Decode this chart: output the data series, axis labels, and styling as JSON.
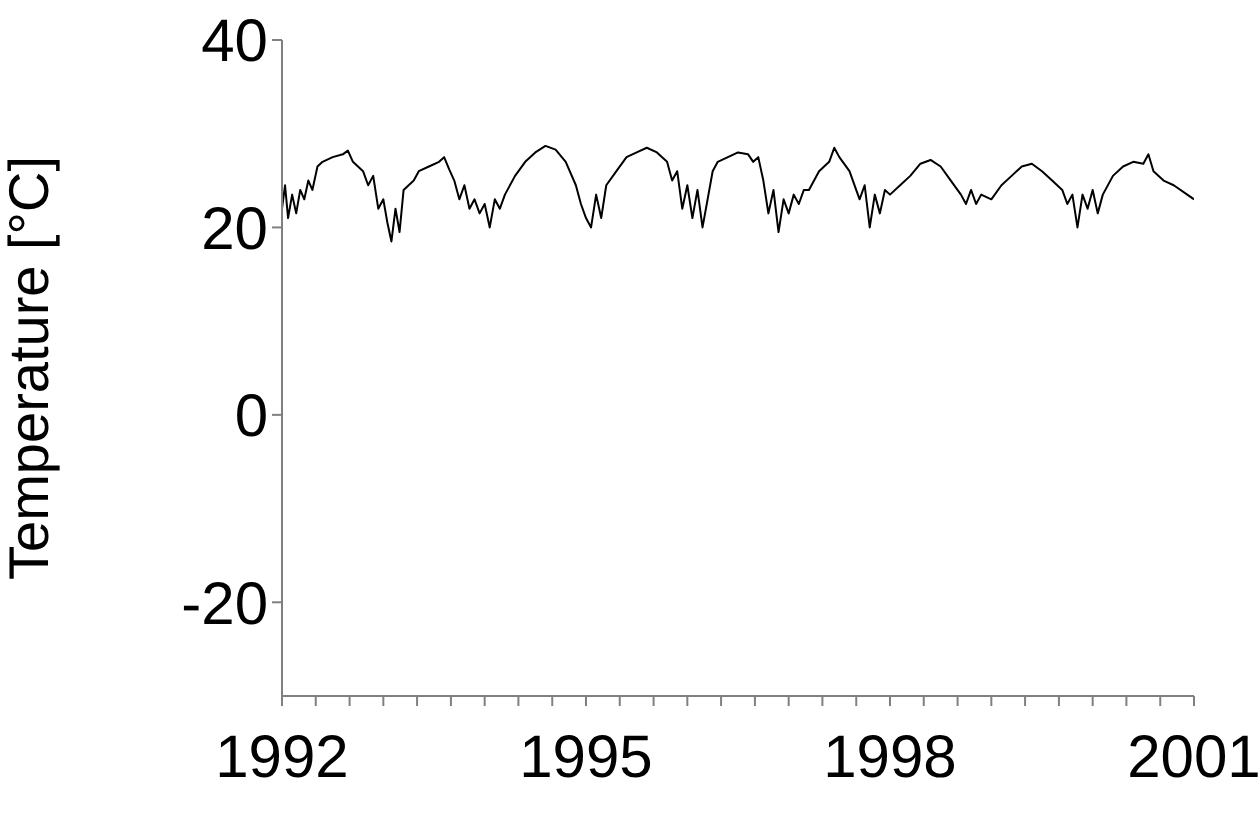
{
  "chart_data": {
    "type": "line",
    "ylabel": "Temperature [°C]",
    "xlim": [
      1992,
      2001
    ],
    "xticks": [
      1992,
      {
        "value": 1992.333,
        "label": null
      },
      {
        "value": 1992.667,
        "label": null
      },
      {
        "value": 1993,
        "label": null
      },
      {
        "value": 1993.333,
        "label": null
      },
      {
        "value": 1993.667,
        "label": null
      },
      {
        "value": 1994,
        "label": null
      },
      {
        "value": 1994.333,
        "label": null
      },
      {
        "value": 1994.667,
        "label": null
      },
      1995,
      {
        "value": 1995.333,
        "label": null
      },
      {
        "value": 1995.667,
        "label": null
      },
      {
        "value": 1996,
        "label": null
      },
      {
        "value": 1996.333,
        "label": null
      },
      {
        "value": 1996.667,
        "label": null
      },
      {
        "value": 1997,
        "label": null
      },
      {
        "value": 1997.333,
        "label": null
      },
      {
        "value": 1997.667,
        "label": null
      },
      1998,
      {
        "value": 1998.333,
        "label": null
      },
      {
        "value": 1998.667,
        "label": null
      },
      {
        "value": 1999,
        "label": null
      },
      {
        "value": 1999.333,
        "label": null
      },
      {
        "value": 1999.667,
        "label": null
      },
      {
        "value": 2000,
        "label": null
      },
      {
        "value": 2000.333,
        "label": null
      },
      {
        "value": 2000.667,
        "label": null
      },
      2001
    ],
    "ylim": [
      -30,
      40
    ],
    "yticks": [
      -20,
      0,
      20,
      40
    ],
    "grid": false,
    "legend": false,
    "marker": "none",
    "line_style": "solid",
    "x": [
      1992.0,
      1992.03,
      1992.06,
      1992.1,
      1992.14,
      1992.18,
      1992.22,
      1992.26,
      1992.3,
      1992.35,
      1992.4,
      1992.5,
      1992.6,
      1992.65,
      1992.7,
      1992.75,
      1992.8,
      1992.85,
      1992.9,
      1992.95,
      1993.0,
      1993.04,
      1993.08,
      1993.12,
      1993.16,
      1993.2,
      1993.25,
      1993.3,
      1993.35,
      1993.45,
      1993.55,
      1993.6,
      1993.65,
      1993.7,
      1993.75,
      1993.8,
      1993.85,
      1993.9,
      1993.95,
      1994.0,
      1994.05,
      1994.1,
      1994.15,
      1994.2,
      1994.3,
      1994.4,
      1994.5,
      1994.6,
      1994.7,
      1994.8,
      1994.9,
      1994.95,
      1995.0,
      1995.05,
      1995.1,
      1995.15,
      1995.2,
      1995.3,
      1995.4,
      1995.5,
      1995.6,
      1995.7,
      1995.8,
      1995.85,
      1995.9,
      1995.95,
      1996.0,
      1996.05,
      1996.1,
      1996.15,
      1996.2,
      1996.25,
      1996.3,
      1996.4,
      1996.5,
      1996.6,
      1996.65,
      1996.7,
      1996.75,
      1996.8,
      1996.85,
      1996.9,
      1996.95,
      1997.0,
      1997.05,
      1997.1,
      1997.15,
      1997.2,
      1997.3,
      1997.4,
      1997.45,
      1997.5,
      1997.6,
      1997.7,
      1997.75,
      1997.8,
      1997.85,
      1997.9,
      1997.95,
      1998.0,
      1998.1,
      1998.2,
      1998.3,
      1998.4,
      1998.5,
      1998.6,
      1998.7,
      1998.75,
      1998.8,
      1998.85,
      1998.9,
      1999.0,
      1999.1,
      1999.2,
      1999.3,
      1999.4,
      1999.5,
      1999.6,
      1999.7,
      1999.75,
      1999.8,
      1999.85,
      1999.9,
      1999.95,
      2000.0,
      2000.05,
      2000.1,
      2000.2,
      2000.3,
      2000.4,
      2000.5,
      2000.55,
      2000.6,
      2000.7,
      2000.8,
      2001.0
    ],
    "series": [
      {
        "color": "#000000",
        "values": [
          22,
          24.5,
          21,
          23.5,
          21.5,
          24,
          23,
          25,
          24,
          26.5,
          27,
          27.5,
          27.8,
          28.2,
          27,
          26.5,
          26,
          24.5,
          25.5,
          22,
          23,
          20.5,
          18.5,
          22,
          19.5,
          24,
          24.5,
          25,
          26,
          26.5,
          27,
          27.5,
          26.2,
          25,
          23,
          24.5,
          22,
          23,
          21.5,
          22.5,
          20,
          23,
          22,
          23.5,
          25.5,
          27,
          28,
          28.7,
          28.3,
          27,
          24.5,
          22.5,
          21,
          20,
          23.5,
          21,
          24.5,
          26,
          27.5,
          28,
          28.5,
          28,
          27,
          25,
          26,
          22,
          24.5,
          21,
          24,
          20,
          23,
          26,
          27,
          27.5,
          28,
          27.8,
          27,
          27.5,
          25,
          21.5,
          24,
          19.5,
          23,
          21.5,
          23.5,
          22.5,
          24,
          24,
          26,
          27,
          28.5,
          27.5,
          26,
          23,
          24.5,
          20,
          23.5,
          21.5,
          24,
          23.5,
          24.5,
          25.5,
          26.8,
          27.2,
          26.5,
          25,
          23.5,
          22.5,
          24,
          22.5,
          23.5,
          23,
          24.5,
          25.5,
          26.5,
          26.8,
          26,
          25,
          24,
          22.5,
          23.5,
          20,
          23.5,
          22,
          24,
          21.5,
          23.5,
          25.5,
          26.5,
          27,
          26.8,
          27.8,
          26,
          25,
          24.5,
          23
        ]
      }
    ]
  }
}
